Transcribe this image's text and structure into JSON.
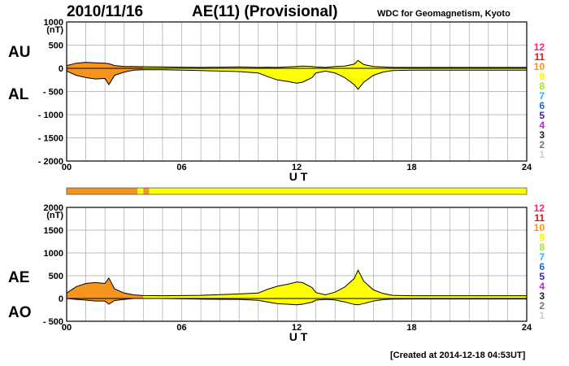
{
  "header": {
    "date": "2010/11/16",
    "title": "AE(11) (Provisional)",
    "source": "WDC for Geomagnetism, Kyoto"
  },
  "footer": {
    "created": "[Created at 2014-12-18 04:53UT]"
  },
  "colors": {
    "fill_early": "#f7941d",
    "fill_late": "#ffff00",
    "grid": "#a8a8a8",
    "station_bar": [
      "#f7941d",
      "#ffff00"
    ]
  },
  "legend": {
    "station_counts": [
      {
        "label": "12",
        "color": "#ee2a7b"
      },
      {
        "label": "11",
        "color": "#d7141a"
      },
      {
        "label": "10",
        "color": "#f7941d"
      },
      {
        "label": "9",
        "color": "#fff200"
      },
      {
        "label": "8",
        "color": "#a6e22e"
      },
      {
        "label": "7",
        "color": "#2cb5e8"
      },
      {
        "label": "6",
        "color": "#1f66d1"
      },
      {
        "label": "5",
        "color": "#3a1fb0"
      },
      {
        "label": "4",
        "color": "#c11fd8"
      },
      {
        "label": "3",
        "color": "#222222"
      },
      {
        "label": "2",
        "color": "#777777"
      },
      {
        "label": "1",
        "color": "#cccccc"
      }
    ]
  },
  "chart_data": [
    {
      "type": "area",
      "panel": "AU/AL",
      "xlabel": "U T",
      "ylabel": "(nT)",
      "xlim": [
        0,
        24
      ],
      "ylim": [
        -2000,
        1000
      ],
      "xticks": [
        "00",
        "06",
        "12",
        "18",
        "24"
      ],
      "yticks": [
        "1000",
        "500",
        "0",
        "- 500",
        "- 1000",
        "- 1500",
        "- 2000"
      ],
      "ytick_values": [
        1000,
        500,
        0,
        -500,
        -1000,
        -1500,
        -2000
      ],
      "upper_label": "AU",
      "lower_label": "AL",
      "color_switch_hour": 4,
      "x": [
        0,
        0.5,
        1,
        1.5,
        2,
        2.2,
        2.5,
        3,
        3.5,
        4,
        5,
        6,
        7,
        8,
        9,
        10,
        10.5,
        11,
        11.5,
        12,
        12.3,
        12.8,
        13,
        13.5,
        14,
        14.5,
        15,
        15.2,
        15.5,
        16,
        16.5,
        17,
        18,
        19,
        20,
        21,
        22,
        23,
        24
      ],
      "upper": [
        60,
        110,
        130,
        120,
        110,
        100,
        60,
        40,
        40,
        35,
        30,
        25,
        20,
        25,
        30,
        20,
        25,
        20,
        30,
        40,
        50,
        40,
        30,
        20,
        40,
        50,
        90,
        170,
        80,
        40,
        30,
        20,
        20,
        20,
        20,
        20,
        20,
        20,
        20
      ],
      "lower": [
        -60,
        -150,
        -200,
        -230,
        -220,
        -350,
        -150,
        -80,
        -40,
        -30,
        -30,
        -40,
        -50,
        -60,
        -70,
        -100,
        -180,
        -250,
        -280,
        -320,
        -300,
        -200,
        -100,
        -60,
        -100,
        -200,
        -350,
        -450,
        -300,
        -150,
        -80,
        -50,
        -40,
        -40,
        -40,
        -40,
        -40,
        -40,
        -40
      ]
    },
    {
      "type": "area",
      "panel": "AE/AO",
      "xlabel": "U T",
      "ylabel": "(nT)",
      "xlim": [
        0,
        24
      ],
      "ylim": [
        -500,
        2000
      ],
      "xticks": [
        "00",
        "06",
        "12",
        "18",
        "24"
      ],
      "yticks": [
        "2000",
        "1500",
        "1000",
        "500",
        "0",
        "- 500"
      ],
      "ytick_values": [
        2000,
        1500,
        1000,
        500,
        0,
        -500
      ],
      "upper_label": "AE",
      "lower_label": "AO",
      "color_switch_hour": 4,
      "x": [
        0,
        0.5,
        1,
        1.5,
        2,
        2.2,
        2.5,
        3,
        3.5,
        4,
        5,
        6,
        7,
        8,
        9,
        10,
        10.5,
        11,
        11.5,
        12,
        12.3,
        12.8,
        13,
        13.5,
        14,
        14.5,
        15,
        15.2,
        15.5,
        16,
        16.5,
        17,
        18,
        19,
        20,
        21,
        22,
        23,
        24
      ],
      "upper": [
        120,
        260,
        330,
        350,
        330,
        450,
        210,
        120,
        80,
        65,
        60,
        65,
        70,
        85,
        100,
        120,
        205,
        270,
        310,
        360,
        350,
        240,
        130,
        80,
        140,
        250,
        440,
        620,
        380,
        190,
        110,
        70,
        60,
        60,
        60,
        60,
        60,
        60,
        60
      ],
      "lower": [
        0,
        -20,
        -35,
        -55,
        -55,
        -125,
        -45,
        -20,
        0,
        0,
        0,
        -8,
        -15,
        -18,
        -20,
        -40,
        -78,
        -115,
        -125,
        -140,
        -125,
        -80,
        -35,
        -20,
        -30,
        -75,
        -130,
        -140,
        -110,
        -55,
        -25,
        -15,
        -10,
        -10,
        -10,
        -10,
        -10,
        -10,
        -10
      ]
    }
  ]
}
